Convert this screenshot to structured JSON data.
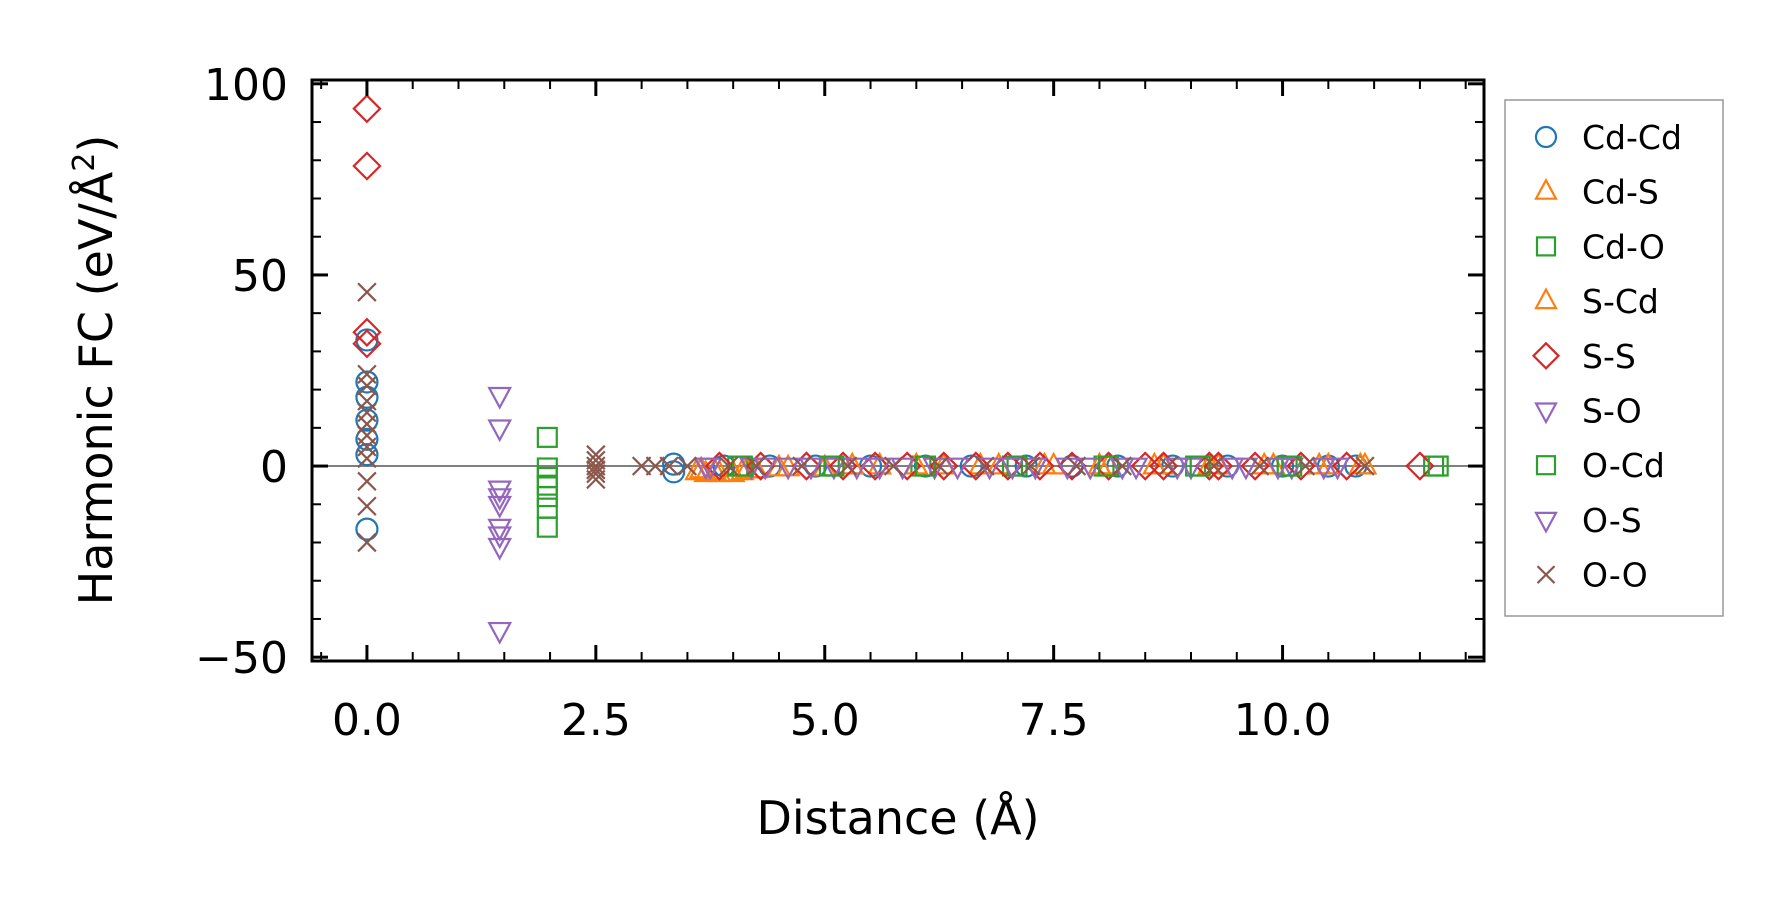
{
  "chart_data": {
    "type": "scatter",
    "xlabel": "Distance (Å)",
    "ylabel_main": "Harmonic FC (eV/Å",
    "ylabel_sup": "2",
    "ylabel_end": ")",
    "xlim": [
      -0.6,
      12.2
    ],
    "ylim": [
      -51,
      101
    ],
    "xticks": [
      0.0,
      2.5,
      5.0,
      7.5,
      10.0
    ],
    "xtick_labels": [
      "0.0",
      "2.5",
      "5.0",
      "7.5",
      "10.0"
    ],
    "yticks": [
      -50,
      0,
      50,
      100
    ],
    "ytick_labels": [
      "−50",
      "0",
      "50",
      "100"
    ],
    "zero_line": true,
    "legend_position": "right",
    "series": [
      {
        "name": "Cd-Cd",
        "marker": "circle",
        "color": "#1f77b4",
        "points": [
          [
            0,
            -16.5
          ],
          [
            0,
            3
          ],
          [
            0,
            7
          ],
          [
            0,
            12
          ],
          [
            0,
            18
          ],
          [
            0,
            22
          ],
          [
            0,
            33
          ],
          [
            3.35,
            -1.5
          ],
          [
            3.35,
            0.5
          ],
          [
            3.9,
            0
          ],
          [
            4.4,
            0
          ],
          [
            4.9,
            0
          ],
          [
            5.5,
            0
          ],
          [
            6.1,
            0
          ],
          [
            6.6,
            0
          ],
          [
            7.2,
            0
          ],
          [
            7.7,
            0
          ],
          [
            8.2,
            0
          ],
          [
            8.8,
            0
          ],
          [
            9.4,
            0
          ],
          [
            10.0,
            0
          ],
          [
            10.5,
            0
          ],
          [
            10.8,
            0
          ]
        ]
      },
      {
        "name": "Cd-S",
        "marker": "triangle-up",
        "color": "#ff7f0e",
        "points": [
          [
            3.6,
            -1.5
          ],
          [
            3.7,
            -2
          ],
          [
            3.85,
            -2
          ],
          [
            4.0,
            -2
          ],
          [
            4.1,
            -1.5
          ],
          [
            4.25,
            -1
          ],
          [
            4.5,
            -0.5
          ],
          [
            5.0,
            -0.5
          ],
          [
            5.6,
            0
          ],
          [
            6.3,
            0
          ],
          [
            6.9,
            0
          ],
          [
            7.5,
            0
          ],
          [
            8.1,
            0
          ],
          [
            8.7,
            0
          ],
          [
            9.3,
            0
          ],
          [
            9.9,
            0
          ],
          [
            10.5,
            0
          ],
          [
            10.9,
            0
          ]
        ]
      },
      {
        "name": "Cd-O",
        "marker": "square",
        "color": "#2ca02c",
        "points": [
          [
            1.97,
            7.5
          ],
          [
            1.97,
            -0.5
          ],
          [
            1.97,
            -3
          ],
          [
            1.97,
            -5
          ],
          [
            1.97,
            -8
          ],
          [
            1.97,
            -11
          ],
          [
            1.97,
            -16
          ],
          [
            4.05,
            0
          ],
          [
            5.05,
            0
          ],
          [
            6.05,
            0
          ],
          [
            7.05,
            0
          ],
          [
            8.05,
            0
          ],
          [
            9.05,
            0
          ],
          [
            10.05,
            0
          ],
          [
            11.65,
            0
          ]
        ]
      },
      {
        "name": "S-Cd",
        "marker": "triangle-up",
        "color": "#ff7f0e",
        "points": [
          [
            3.65,
            -1
          ],
          [
            3.8,
            -1.5
          ],
          [
            4.15,
            -1
          ],
          [
            4.6,
            -0.5
          ],
          [
            5.3,
            0
          ],
          [
            6.0,
            0
          ],
          [
            6.7,
            0
          ],
          [
            7.4,
            0
          ],
          [
            8.0,
            0
          ],
          [
            8.6,
            0
          ],
          [
            9.2,
            0
          ],
          [
            9.8,
            0
          ],
          [
            10.4,
            0
          ],
          [
            10.85,
            0
          ]
        ]
      },
      {
        "name": "S-S",
        "marker": "diamond",
        "color": "#d62728",
        "points": [
          [
            0,
            93.5
          ],
          [
            0,
            78.5
          ],
          [
            0,
            35
          ],
          [
            0,
            32
          ],
          [
            3.85,
            0
          ],
          [
            4.3,
            0
          ],
          [
            4.8,
            0
          ],
          [
            5.2,
            0
          ],
          [
            5.55,
            0
          ],
          [
            5.9,
            0
          ],
          [
            6.3,
            0
          ],
          [
            6.65,
            0
          ],
          [
            7.0,
            0
          ],
          [
            7.35,
            0
          ],
          [
            7.7,
            0
          ],
          [
            8.1,
            0
          ],
          [
            8.5,
            0
          ],
          [
            8.7,
            0
          ],
          [
            9.2,
            0
          ],
          [
            9.3,
            0
          ],
          [
            9.7,
            0
          ],
          [
            10.2,
            0
          ],
          [
            10.7,
            0
          ],
          [
            11.5,
            0
          ]
        ]
      },
      {
        "name": "S-O",
        "marker": "triangle-down",
        "color": "#9467bd",
        "points": [
          [
            1.45,
            18.5
          ],
          [
            1.45,
            10
          ],
          [
            1.45,
            -6
          ],
          [
            1.45,
            -8
          ],
          [
            1.45,
            -10
          ],
          [
            1.45,
            -16
          ],
          [
            1.45,
            -18
          ],
          [
            1.45,
            -21
          ],
          [
            1.45,
            -43
          ],
          [
            3.7,
            0
          ],
          [
            4.2,
            0
          ],
          [
            4.6,
            0
          ],
          [
            5.1,
            0
          ],
          [
            5.6,
            0
          ],
          [
            6.2,
            0
          ],
          [
            6.8,
            0
          ],
          [
            7.3,
            0
          ],
          [
            7.9,
            0
          ],
          [
            8.4,
            0
          ],
          [
            9.0,
            0
          ],
          [
            9.6,
            0
          ],
          [
            10.1,
            0
          ],
          [
            10.6,
            0
          ]
        ]
      },
      {
        "name": "O-Cd",
        "marker": "square",
        "color": "#2ca02c",
        "points": [
          [
            4.1,
            0
          ],
          [
            5.1,
            0
          ],
          [
            6.1,
            0
          ],
          [
            7.1,
            0
          ],
          [
            8.1,
            0
          ],
          [
            9.1,
            0
          ],
          [
            10.1,
            0
          ],
          [
            11.7,
            0
          ]
        ]
      },
      {
        "name": "O-S",
        "marker": "triangle-down",
        "color": "#9467bd",
        "points": [
          [
            3.75,
            0
          ],
          [
            4.35,
            0
          ],
          [
            4.85,
            0
          ],
          [
            5.35,
            0
          ],
          [
            5.85,
            0
          ],
          [
            6.45,
            0
          ],
          [
            7.05,
            0
          ],
          [
            7.65,
            0
          ],
          [
            8.25,
            0
          ],
          [
            8.85,
            0
          ],
          [
            9.45,
            0
          ],
          [
            9.95,
            0
          ],
          [
            10.45,
            0
          ]
        ]
      },
      {
        "name": "O-O",
        "marker": "cross",
        "color": "#8c564b",
        "points": [
          [
            0,
            45.5
          ],
          [
            0,
            24
          ],
          [
            0,
            21
          ],
          [
            0,
            17
          ],
          [
            0,
            14
          ],
          [
            0,
            11
          ],
          [
            0,
            8
          ],
          [
            0,
            5
          ],
          [
            0,
            2
          ],
          [
            0,
            -4
          ],
          [
            0,
            -10.5
          ],
          [
            0,
            -20
          ],
          [
            2.5,
            3
          ],
          [
            2.5,
            1.5
          ],
          [
            2.5,
            0
          ],
          [
            2.5,
            -1
          ],
          [
            2.5,
            -2
          ],
          [
            2.5,
            -3.5
          ],
          [
            3.0,
            0
          ],
          [
            3.15,
            0
          ],
          [
            3.3,
            0
          ],
          [
            3.5,
            0
          ],
          [
            3.95,
            0
          ],
          [
            4.25,
            0
          ],
          [
            4.75,
            0
          ],
          [
            5.25,
            0
          ],
          [
            5.75,
            0
          ],
          [
            6.25,
            0
          ],
          [
            6.75,
            0
          ],
          [
            7.25,
            0
          ],
          [
            7.75,
            0
          ],
          [
            8.25,
            0
          ],
          [
            8.75,
            0
          ],
          [
            9.25,
            0
          ],
          [
            9.75,
            0
          ],
          [
            10.25,
            0
          ],
          [
            10.9,
            0
          ]
        ]
      }
    ]
  }
}
